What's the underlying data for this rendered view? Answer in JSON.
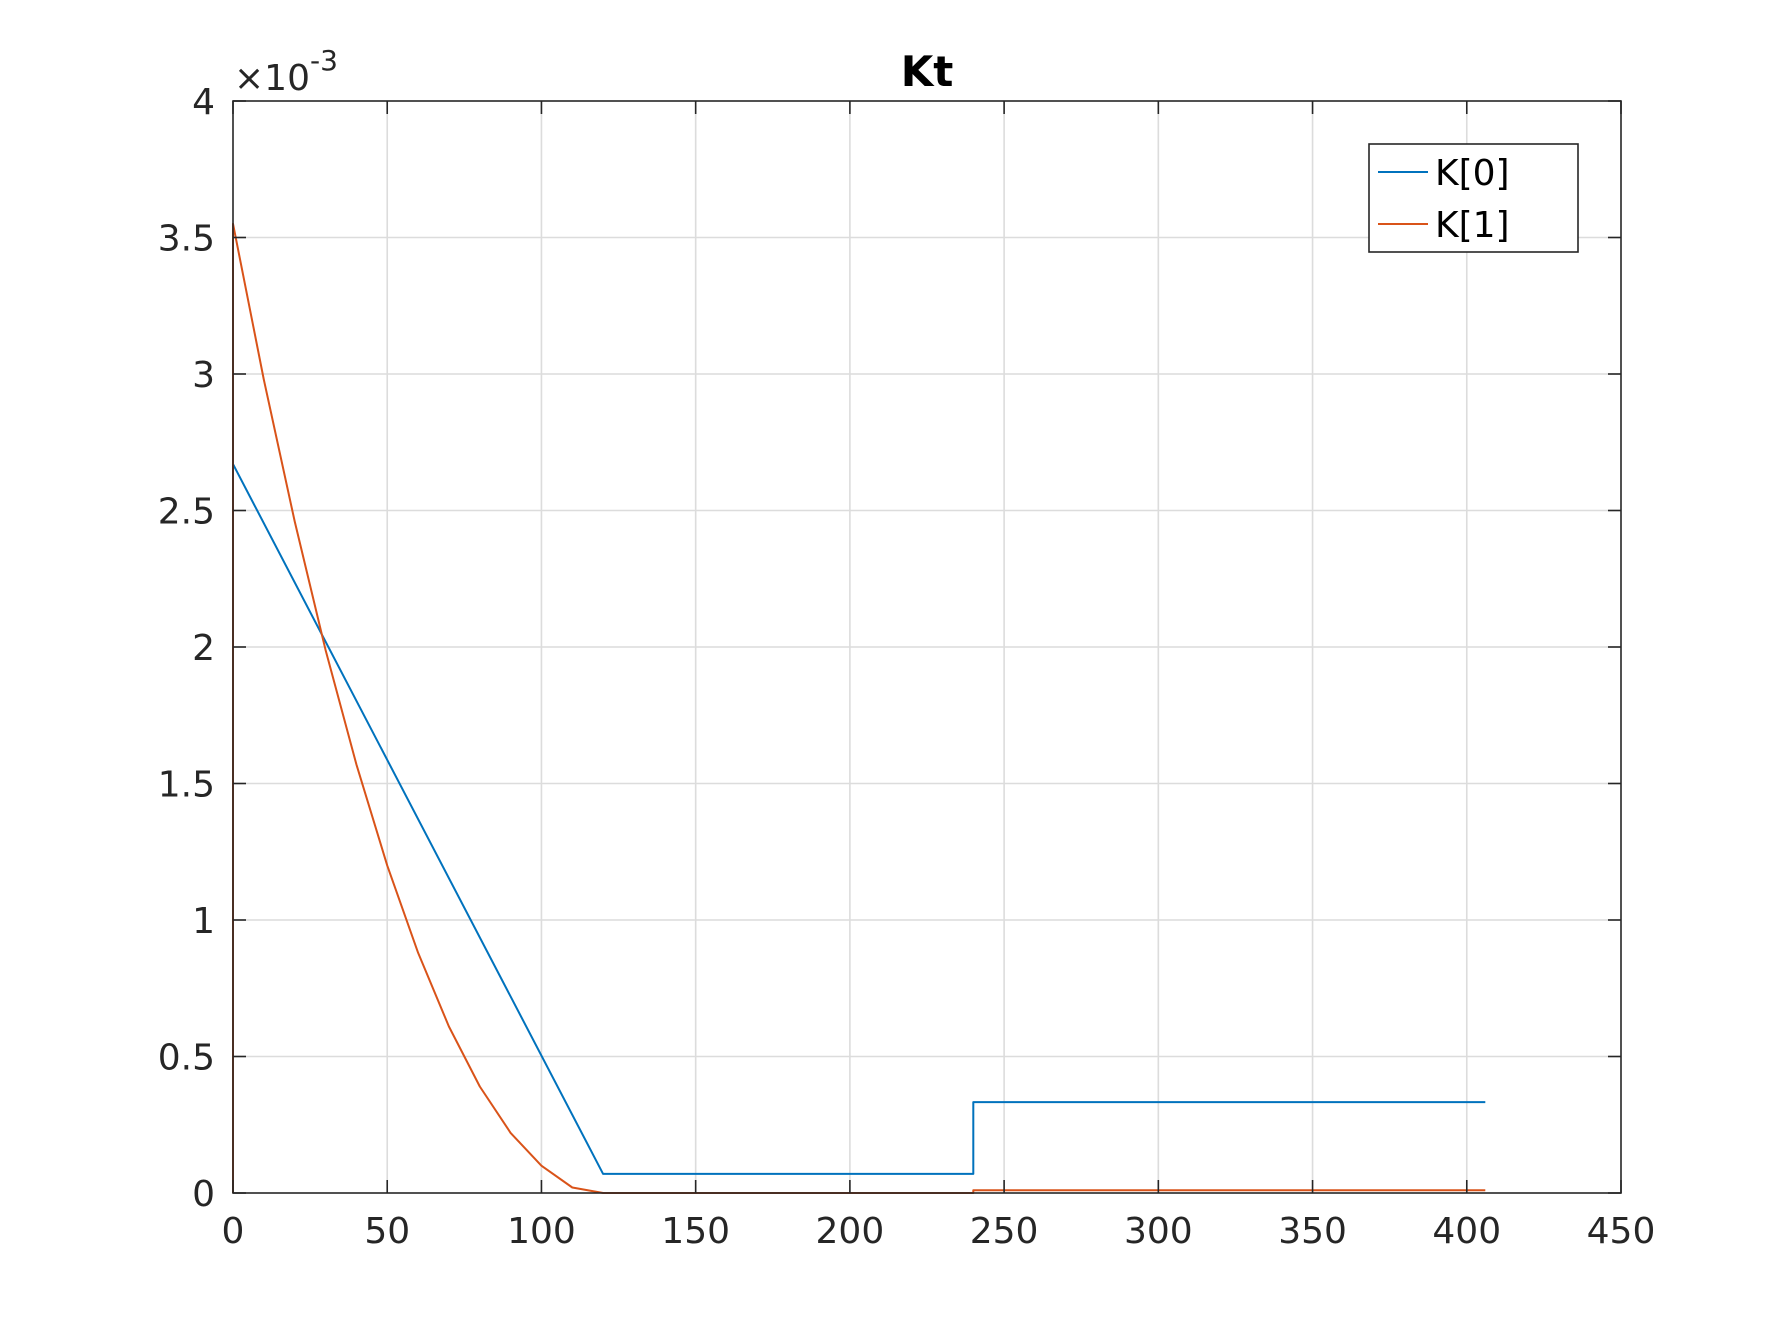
{
  "chart_data": {
    "type": "line",
    "title": "Kt",
    "xlabel": "",
    "ylabel": "",
    "xlim": [
      0,
      450
    ],
    "ylim": [
      0,
      0.004
    ],
    "xticks": [
      0,
      50,
      100,
      150,
      200,
      250,
      300,
      350,
      400,
      450
    ],
    "xtick_labels": [
      "0",
      "50",
      "100",
      "150",
      "200",
      "250",
      "300",
      "350",
      "400",
      "450"
    ],
    "yticks": [
      0,
      0.0005,
      0.001,
      0.0015,
      0.002,
      0.0025,
      0.003,
      0.0035,
      0.004
    ],
    "ytick_labels": [
      "0",
      "0.5",
      "1",
      "1.5",
      "2",
      "2.5",
      "3",
      "3.5",
      "4"
    ],
    "y_exponent": {
      "base": "10",
      "power": "-3",
      "prefix": "×"
    },
    "grid": true,
    "legend_position": "top-right",
    "series": [
      {
        "name": "K[0]",
        "color": "#0072BD",
        "x": [
          0,
          0,
          120,
          240,
          240,
          406
        ],
        "y": [
          0,
          0.00267,
          7e-05,
          7e-05,
          0.000333,
          0.000333
        ]
      },
      {
        "name": "K[1]",
        "color": "#D95319",
        "x": [
          0,
          0,
          10,
          20,
          30,
          40,
          50,
          60,
          70,
          80,
          90,
          100,
          110,
          120,
          240,
          240,
          406
        ],
        "y": [
          0,
          0.00355,
          0.00298,
          0.00246,
          0.00199,
          0.00157,
          0.0012,
          0.00088,
          0.00061,
          0.00039,
          0.00022,
          0.0001,
          2e-05,
          0.0,
          0.0,
          1e-05,
          1e-05
        ]
      }
    ]
  }
}
